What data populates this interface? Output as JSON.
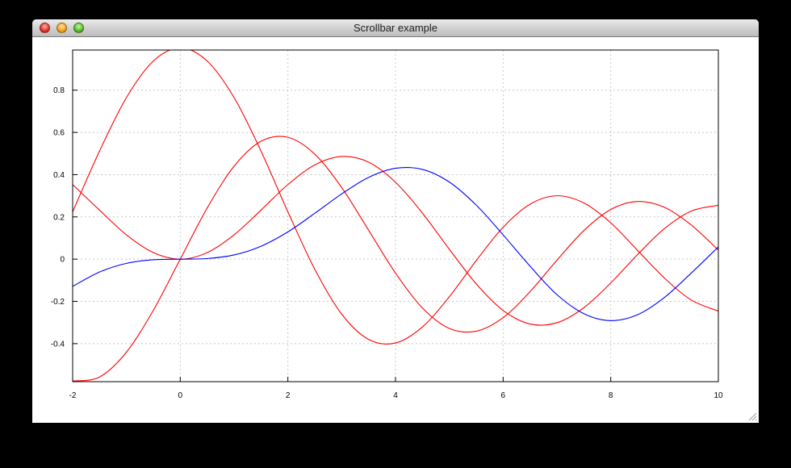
{
  "window": {
    "title": "Scrollbar example",
    "buttons": [
      "close",
      "minimize",
      "zoom"
    ]
  },
  "chart_data": {
    "type": "line",
    "title": "",
    "xlabel": "",
    "ylabel": "",
    "xlim": [
      -2,
      10
    ],
    "ylim": [
      -0.58,
      0.99
    ],
    "grid": true,
    "x_ticks": [
      "-2",
      "0",
      "2",
      "4",
      "6",
      "8",
      "10"
    ],
    "y_ticks": [
      "-0.4",
      "-0.2",
      "0",
      "0.2",
      "0.4",
      "0.6",
      "0.8"
    ],
    "x_tick_values": [
      -2,
      0,
      2,
      4,
      6,
      8,
      10
    ],
    "y_tick_values": [
      -0.4,
      -0.2,
      0,
      0.2,
      0.4,
      0.6,
      0.8
    ],
    "series": [
      {
        "color": "#ff0000",
        "x": [
          -2,
          -1.5,
          -1,
          -0.5,
          0,
          0.5,
          1,
          1.5,
          2,
          2.5,
          3,
          3.5,
          4,
          4.5,
          5,
          5.5,
          6,
          6.5,
          7,
          7.5,
          8,
          8.5,
          9,
          9.5,
          10
        ],
        "y": [
          0.224,
          0.512,
          0.765,
          0.938,
          1.0,
          0.938,
          0.765,
          0.512,
          0.224,
          -0.048,
          -0.26,
          -0.38,
          -0.397,
          -0.321,
          -0.178,
          -0.007,
          0.151,
          0.26,
          0.3,
          0.266,
          0.172,
          0.041,
          -0.09,
          -0.194,
          -0.246
        ]
      },
      {
        "color": "#ff0000",
        "x": [
          -2,
          -1.5,
          -1,
          -0.5,
          0,
          0.5,
          1,
          1.5,
          2,
          2.5,
          3,
          3.5,
          4,
          4.5,
          5,
          5.5,
          6,
          6.5,
          7,
          7.5,
          8,
          8.5,
          9,
          9.5,
          10
        ],
        "y": [
          -0.577,
          -0.558,
          -0.44,
          -0.242,
          0,
          0.242,
          0.44,
          0.558,
          0.577,
          0.497,
          0.339,
          0.137,
          -0.066,
          -0.231,
          -0.328,
          -0.341,
          -0.277,
          -0.154,
          -0.005,
          0.135,
          0.235,
          0.273,
          0.245,
          0.161,
          0.043
        ]
      },
      {
        "color": "#ff0000",
        "x": [
          -2,
          -1.5,
          -1,
          -0.5,
          0,
          0.5,
          1,
          1.5,
          2,
          2.5,
          3,
          3.5,
          4,
          4.5,
          5,
          5.5,
          6,
          6.5,
          7,
          7.5,
          8,
          8.5,
          9,
          9.5,
          10
        ],
        "y": [
          0.353,
          0.232,
          0.115,
          0.031,
          0,
          0.031,
          0.115,
          0.232,
          0.353,
          0.446,
          0.486,
          0.459,
          0.364,
          0.218,
          0.047,
          -0.117,
          -0.243,
          -0.307,
          -0.301,
          -0.23,
          -0.113,
          0.022,
          0.145,
          0.228,
          0.255
        ]
      },
      {
        "color": "#0000ff",
        "x": [
          -2,
          -1.5,
          -1,
          -0.5,
          0,
          0.5,
          1,
          1.5,
          2,
          2.5,
          3,
          3.5,
          4,
          4.5,
          5,
          5.5,
          6,
          6.5,
          7,
          7.5,
          8,
          8.5,
          9,
          9.5,
          10
        ],
        "y": [
          -0.129,
          -0.061,
          -0.02,
          -0.003,
          0,
          0.003,
          0.02,
          0.061,
          0.129,
          0.217,
          0.309,
          0.387,
          0.43,
          0.425,
          0.365,
          0.256,
          0.115,
          -0.033,
          -0.168,
          -0.258,
          -0.291,
          -0.263,
          -0.181,
          -0.065,
          0.058
        ]
      }
    ]
  }
}
